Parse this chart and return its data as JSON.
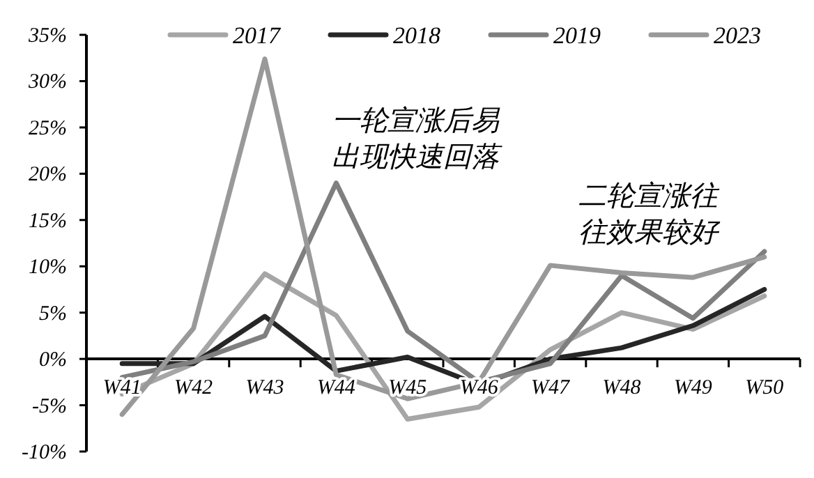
{
  "chart_data": {
    "type": "line",
    "categories": [
      "W41",
      "W42",
      "W43",
      "W44",
      "W45",
      "W46",
      "W47",
      "W48",
      "W49",
      "W50"
    ],
    "series": [
      {
        "name": "2017",
        "color": "#a6a6a6",
        "values": [
          -3.8,
          -0.5,
          9.2,
          4.7,
          -6.5,
          -5.2,
          1,
          5,
          3.2,
          6.8
        ]
      },
      {
        "name": "2018",
        "color": "#262626",
        "values": [
          -0.5,
          -0.5,
          4.6,
          -1.3,
          0.2,
          -2.8,
          0,
          1.2,
          3.6,
          7.5
        ]
      },
      {
        "name": "2019",
        "color": "#7f7f7f",
        "values": [
          -2,
          -0.3,
          2.5,
          19,
          3,
          -2.5,
          -0.5,
          9,
          4.4,
          11.6
        ]
      },
      {
        "name": "2023",
        "color": "#999999",
        "values": [
          -6,
          3.3,
          32.4,
          -1.7,
          -4.3,
          -2.5,
          10.1,
          9.3,
          8.8,
          11
        ]
      }
    ],
    "ylim": [
      -10,
      35
    ],
    "yticks": [
      {
        "value": -10,
        "label": "-10%"
      },
      {
        "value": -5,
        "label": "-5%"
      },
      {
        "value": 0,
        "label": "0%"
      },
      {
        "value": 5,
        "label": "5%"
      },
      {
        "value": 10,
        "label": "10%"
      },
      {
        "value": 15,
        "label": "15%"
      },
      {
        "value": 20,
        "label": "20%"
      },
      {
        "value": 25,
        "label": "25%"
      },
      {
        "value": 30,
        "label": "30%"
      },
      {
        "value": 35,
        "label": "35%"
      }
    ],
    "annotations": [
      "一轮宣涨后易",
      "出现快速回落",
      "二轮宣涨往",
      "往效果较好"
    ],
    "legend": "top",
    "grid": false,
    "marker": "none",
    "line_style": "solid"
  }
}
